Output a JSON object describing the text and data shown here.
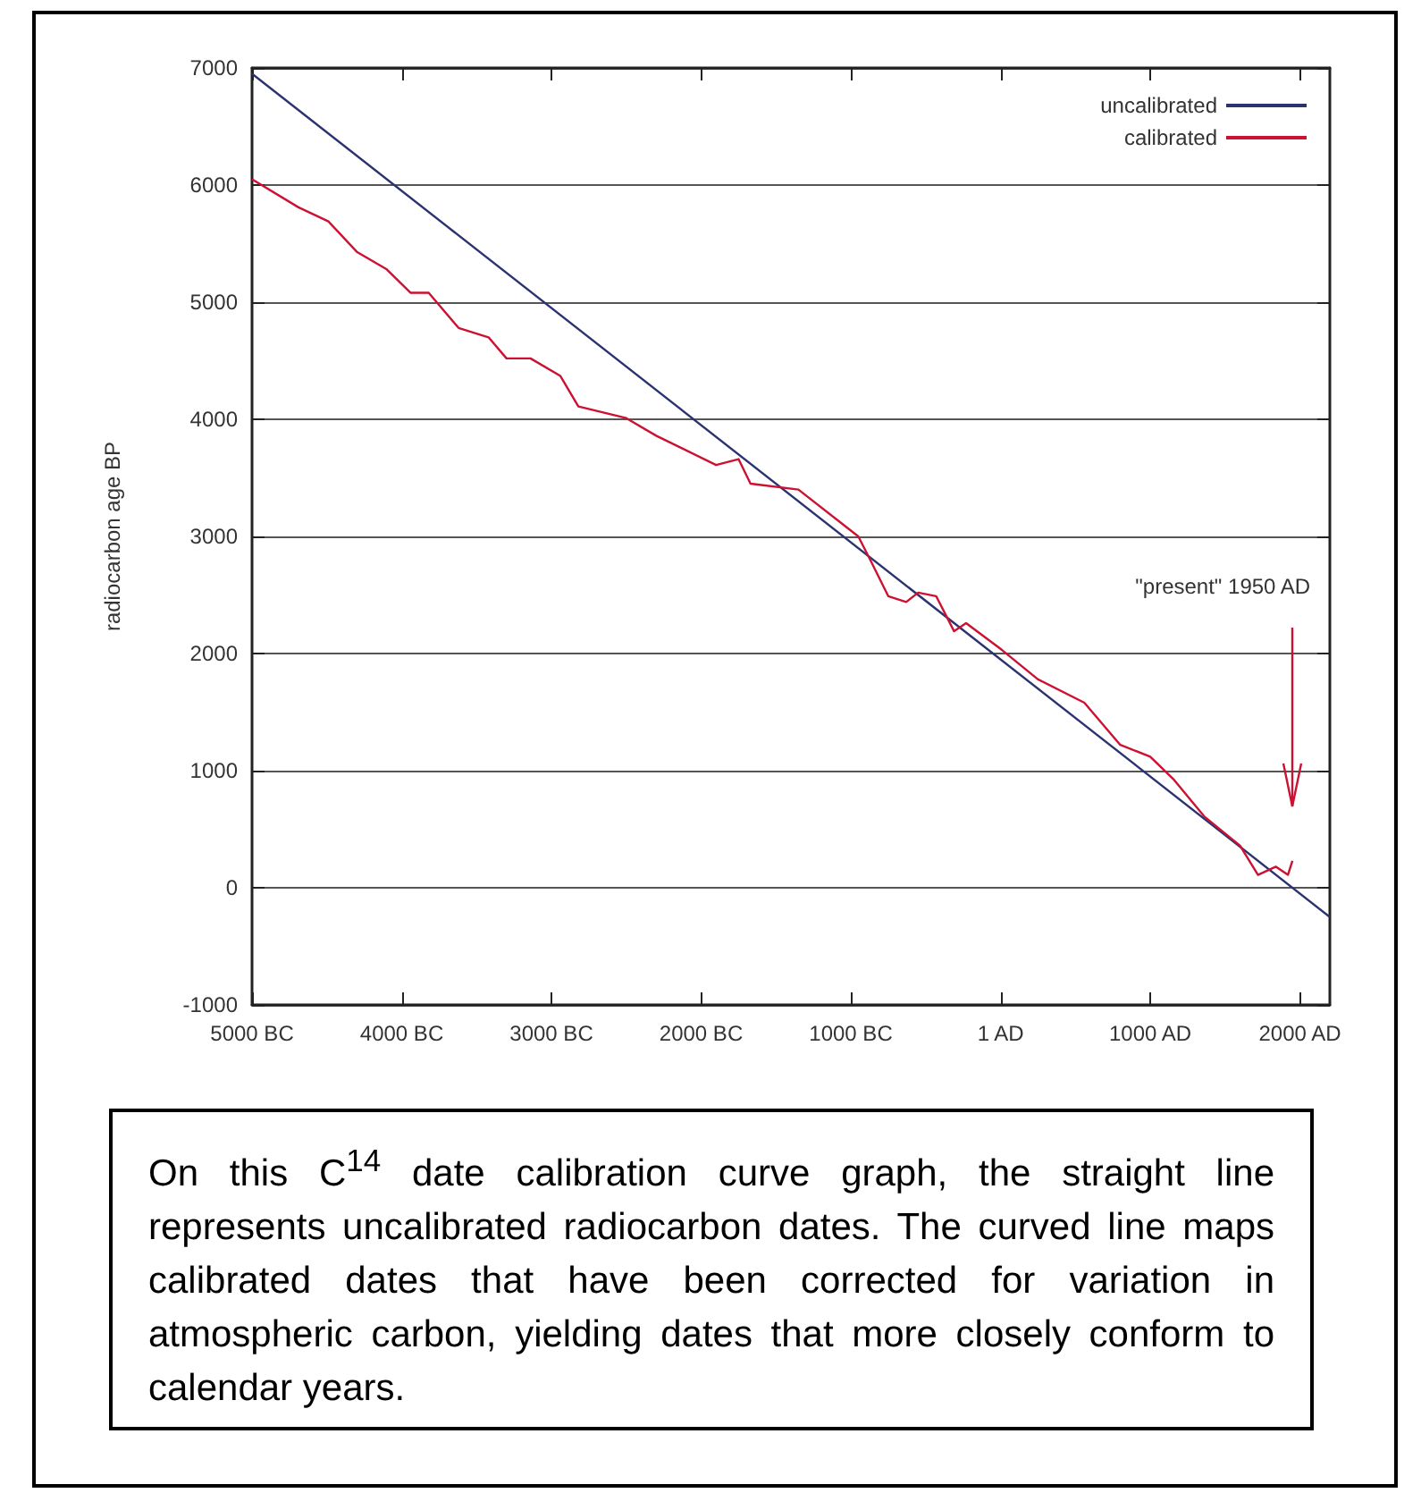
{
  "chart_data": {
    "type": "line",
    "ylabel": "radiocarbon age BP",
    "xlim": [
      -5000,
      2200
    ],
    "ylim": [
      -1000,
      7000
    ],
    "xticks": [
      {
        "value": -5000,
        "label": "5000 BC"
      },
      {
        "value": -4000,
        "label": "4000 BC"
      },
      {
        "value": -3000,
        "label": "3000 BC"
      },
      {
        "value": -2000,
        "label": "2000 BC"
      },
      {
        "value": -1000,
        "label": "1000 BC"
      },
      {
        "value": 1,
        "label": "1 AD"
      },
      {
        "value": 1000,
        "label": "1000 AD"
      },
      {
        "value": 2000,
        "label": "2000 AD"
      }
    ],
    "yticks": [
      -1000,
      0,
      1000,
      2000,
      3000,
      4000,
      5000,
      6000,
      7000
    ],
    "grid": "y",
    "legend": "top right",
    "marker": "none",
    "line_style": "solid",
    "series": [
      {
        "name": "uncalibrated",
        "color": "#2a3370",
        "x": [
          -5000,
          2200
        ],
        "values": [
          6950,
          -250
        ]
      },
      {
        "name": "calibrated",
        "color": "#cc1133",
        "x": [
          -5000,
          -4690,
          -4490,
          -4300,
          -4100,
          -3940,
          -3820,
          -3620,
          -3420,
          -3300,
          -3140,
          -2940,
          -2820,
          -2500,
          -2300,
          -1900,
          -1750,
          -1670,
          -1350,
          -950,
          -870,
          -750,
          -630,
          -550,
          -430,
          -310,
          -230,
          10,
          250,
          560,
          800,
          1000,
          1160,
          1360,
          1600,
          1720,
          1840,
          1920,
          1950
        ],
        "values": [
          6050,
          5810,
          5690,
          5430,
          5280,
          5080,
          5080,
          4780,
          4700,
          4520,
          4520,
          4370,
          4110,
          4010,
          3860,
          3610,
          3660,
          3450,
          3400,
          3000,
          2800,
          2490,
          2440,
          2520,
          2490,
          2190,
          2260,
          2030,
          1780,
          1580,
          1220,
          1120,
          920,
          610,
          360,
          110,
          180,
          110,
          230
        ]
      }
    ],
    "annotations": [
      "\"present\" 1950 AD",
      "On this C$^{14}$ date calibration curve graph, the straight line represents uncalibrated radiocarbon dates. The curved line maps calibrated dates that have been corrected for variation in atmospheric carbon, yielding dates that more closely conform to calendar years."
    ]
  }
}
